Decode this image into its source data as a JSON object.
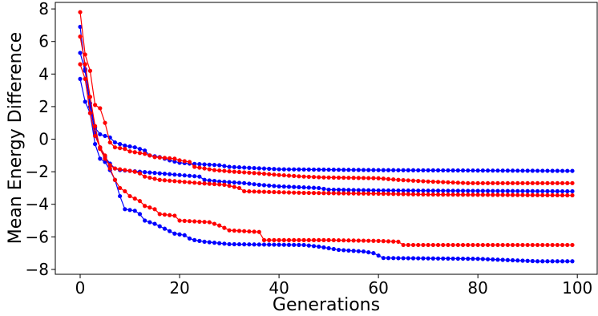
{
  "chart_data": {
    "type": "line",
    "xlabel": "Generations",
    "ylabel": "Mean Energy Difference",
    "xlim": [
      -5,
      104
    ],
    "ylim": [
      -8.3,
      8.4
    ],
    "xticks": [
      0,
      20,
      40,
      60,
      80,
      100
    ],
    "yticks": [
      -8,
      -6,
      -4,
      -2,
      0,
      2,
      4,
      6,
      8
    ],
    "grid": false,
    "series": [
      {
        "color": "#0000ff",
        "points": [
          [
            0,
            6.9
          ],
          [
            1,
            4.3
          ],
          [
            2,
            2.2
          ],
          [
            3,
            0.7
          ],
          [
            4,
            0.3
          ],
          [
            5,
            0.2
          ],
          [
            6,
            0.1
          ],
          [
            7,
            -0.2
          ],
          [
            9,
            -0.4
          ],
          [
            11,
            -0.5
          ],
          [
            13,
            -0.7
          ],
          [
            14,
            -1.0
          ],
          [
            16,
            -1.1
          ],
          [
            18,
            -1.3
          ],
          [
            20,
            -1.45
          ],
          [
            22,
            -1.5
          ],
          [
            28,
            -1.6
          ],
          [
            30,
            -1.7
          ],
          [
            40,
            -1.85
          ],
          [
            60,
            -1.9
          ],
          [
            99,
            -1.95
          ]
        ]
      },
      {
        "color": "#0000ff",
        "points": [
          [
            0,
            5.3
          ],
          [
            1,
            4.2
          ],
          [
            2,
            2.0
          ],
          [
            3,
            0.4
          ],
          [
            4,
            -0.5
          ],
          [
            5,
            -1.1
          ],
          [
            6,
            -1.5
          ],
          [
            7,
            -1.8
          ],
          [
            8,
            -1.9
          ],
          [
            12,
            -2.0
          ],
          [
            16,
            -2.1
          ],
          [
            20,
            -2.2
          ],
          [
            24,
            -2.3
          ],
          [
            25,
            -2.5
          ],
          [
            28,
            -2.6
          ],
          [
            33,
            -2.7
          ],
          [
            36,
            -2.8
          ],
          [
            40,
            -2.9
          ],
          [
            48,
            -3.0
          ],
          [
            50,
            -3.1
          ],
          [
            60,
            -3.15
          ],
          [
            99,
            -3.2
          ]
        ]
      },
      {
        "color": "#0000ff",
        "points": [
          [
            0,
            3.7
          ],
          [
            1,
            2.3
          ],
          [
            2,
            1.6
          ],
          [
            3,
            -0.3
          ],
          [
            4,
            -1.2
          ],
          [
            5,
            -1.4
          ],
          [
            6,
            -1.9
          ],
          [
            7,
            -2.5
          ],
          [
            8,
            -3.5
          ],
          [
            9,
            -4.3
          ],
          [
            11,
            -4.4
          ],
          [
            12,
            -4.6
          ],
          [
            13,
            -5.0
          ],
          [
            15,
            -5.2
          ],
          [
            17,
            -5.5
          ],
          [
            19,
            -5.8
          ],
          [
            21,
            -5.9
          ],
          [
            22,
            -6.1
          ],
          [
            23,
            -6.2
          ],
          [
            25,
            -6.3
          ],
          [
            30,
            -6.45
          ],
          [
            45,
            -6.5
          ],
          [
            48,
            -6.6
          ],
          [
            52,
            -6.8
          ],
          [
            57,
            -6.9
          ],
          [
            59,
            -7.0
          ],
          [
            61,
            -7.3
          ],
          [
            80,
            -7.35
          ],
          [
            92,
            -7.5
          ],
          [
            99,
            -7.5
          ]
        ]
      },
      {
        "color": "#ff0000",
        "points": [
          [
            0,
            7.8
          ],
          [
            1,
            5.2
          ],
          [
            2,
            4.2
          ],
          [
            3,
            2.1
          ],
          [
            4,
            1.9
          ],
          [
            5,
            1.0
          ],
          [
            6,
            -0.2
          ],
          [
            7,
            -0.5
          ],
          [
            9,
            -0.6
          ],
          [
            10,
            -0.75
          ],
          [
            13,
            -0.9
          ],
          [
            15,
            -1.1
          ],
          [
            19,
            -1.2
          ],
          [
            20,
            -1.3
          ],
          [
            22,
            -1.4
          ],
          [
            23,
            -1.7
          ],
          [
            25,
            -1.8
          ],
          [
            27,
            -1.9
          ],
          [
            31,
            -2.0
          ],
          [
            36,
            -2.1
          ],
          [
            40,
            -2.2
          ],
          [
            45,
            -2.3
          ],
          [
            49,
            -2.35
          ],
          [
            60,
            -2.4
          ],
          [
            64,
            -2.5
          ],
          [
            70,
            -2.6
          ],
          [
            78,
            -2.7
          ],
          [
            99,
            -2.7
          ]
        ]
      },
      {
        "color": "#ff0000",
        "points": [
          [
            0,
            6.3
          ],
          [
            1,
            4.6
          ],
          [
            2,
            2.6
          ],
          [
            3,
            0.8
          ],
          [
            4,
            -0.6
          ],
          [
            5,
            -1.2
          ],
          [
            6,
            -1.6
          ],
          [
            7,
            -1.8
          ],
          [
            9,
            -1.9
          ],
          [
            11,
            -2.0
          ],
          [
            12,
            -2.1
          ],
          [
            13,
            -2.3
          ],
          [
            16,
            -2.5
          ],
          [
            20,
            -2.6
          ],
          [
            24,
            -2.7
          ],
          [
            29,
            -2.8
          ],
          [
            32,
            -3.0
          ],
          [
            33,
            -3.2
          ],
          [
            45,
            -3.3
          ],
          [
            60,
            -3.35
          ],
          [
            70,
            -3.4
          ],
          [
            99,
            -3.45
          ]
        ]
      },
      {
        "color": "#ff0000",
        "points": [
          [
            0,
            4.6
          ],
          [
            1,
            3.7
          ],
          [
            2,
            1.6
          ],
          [
            3,
            0.2
          ],
          [
            4,
            -0.5
          ],
          [
            5,
            -1.0
          ],
          [
            6,
            -1.8
          ],
          [
            7,
            -2.5
          ],
          [
            8,
            -3.0
          ],
          [
            9,
            -3.2
          ],
          [
            10,
            -3.5
          ],
          [
            12,
            -3.8
          ],
          [
            13,
            -4.1
          ],
          [
            15,
            -4.3
          ],
          [
            16,
            -4.6
          ],
          [
            19,
            -4.7
          ],
          [
            20,
            -5.0
          ],
          [
            26,
            -5.1
          ],
          [
            28,
            -5.3
          ],
          [
            30,
            -5.6
          ],
          [
            36,
            -5.7
          ],
          [
            37,
            -6.2
          ],
          [
            50,
            -6.2
          ],
          [
            60,
            -6.25
          ],
          [
            64,
            -6.3
          ],
          [
            65,
            -6.5
          ],
          [
            99,
            -6.5
          ]
        ]
      }
    ]
  }
}
